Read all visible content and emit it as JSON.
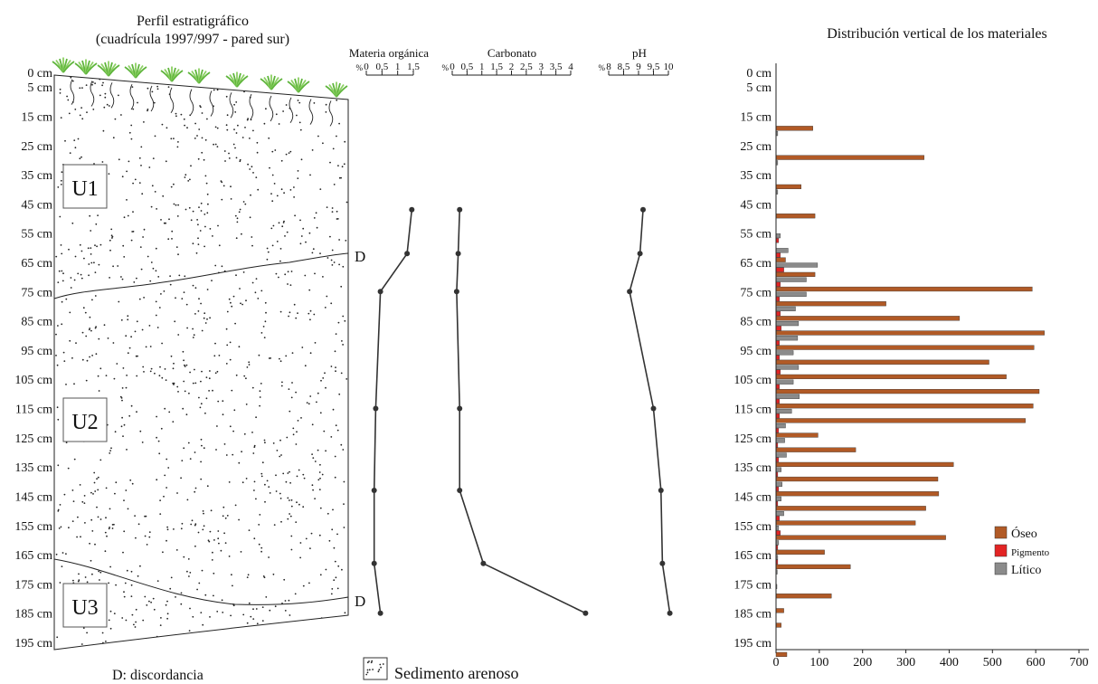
{
  "profile": {
    "title_line1": "Perfil estratigráfico",
    "title_line2": "(cuadrícula 1997/997 - pared sur)",
    "depth_labels": [
      "0 cm",
      "5 cm",
      "15 cm",
      "25 cm",
      "35 cm",
      "45 cm",
      "55 cm",
      "65 cm",
      "75 cm",
      "85 cm",
      "95 cm",
      "105 cm",
      "115 cm",
      "125 cm",
      "135 cm",
      "145 cm",
      "155 cm",
      "165 cm",
      "175 cm",
      "185 cm",
      "195 cm"
    ],
    "units": [
      "U1",
      "U2",
      "U3"
    ],
    "discordance_mark": "D",
    "legend_discordance": "D: discordancia",
    "legend_sediment": "Sedimento arenoso"
  },
  "chart_data": [
    {
      "type": "line",
      "title": "Materia orgánica",
      "unit_label": "%",
      "tick_labels": [
        "0",
        "0,5",
        "1",
        "1,5"
      ],
      "xlim": [
        0,
        1.5
      ],
      "depths": [
        47,
        62,
        75,
        115,
        143,
        168,
        185
      ],
      "values": [
        1.45,
        1.3,
        0.45,
        0.3,
        0.25,
        0.25,
        0.45
      ]
    },
    {
      "type": "line",
      "title": "Carbonato",
      "unit_label": "%",
      "tick_labels": [
        "0",
        "0,5",
        "1",
        "1,5",
        "2",
        "2,5",
        "3",
        "3,5",
        "4"
      ],
      "xlim": [
        0,
        4
      ],
      "depths": [
        47,
        62,
        75,
        115,
        143,
        168,
        185
      ],
      "values": [
        0.25,
        0.2,
        0.15,
        0.25,
        0.25,
        1.05,
        4.5
      ]
    },
    {
      "type": "line",
      "title": "pH",
      "unit_label": "%",
      "tick_labels": [
        "8",
        "8,5",
        "9",
        "9,5",
        "10"
      ],
      "xlim": [
        8,
        10
      ],
      "depths": [
        47,
        62,
        75,
        115,
        143,
        168,
        185
      ],
      "values": [
        9.15,
        9.05,
        8.7,
        9.5,
        9.75,
        9.8,
        10.05
      ]
    },
    {
      "type": "bar",
      "orientation": "horizontal",
      "title": "Distribución vertical de los materiales",
      "y_tick_labels": [
        "0 cm",
        "5 cm",
        "15 cm",
        "25 cm",
        "35 cm",
        "45 cm",
        "55 cm",
        "65 cm",
        "75 cm",
        "85 cm",
        "95 cm",
        "105 cm",
        "115 cm",
        "125 cm",
        "135 cm",
        "145 cm",
        "155 cm",
        "165 cm",
        "175 cm",
        "185 cm",
        "195 cm"
      ],
      "x_tick_labels": [
        "0",
        "100",
        "200",
        "300",
        "400",
        "500",
        "600",
        "700"
      ],
      "xlim": [
        0,
        700
      ],
      "legend_position": "right",
      "categories": [
        "15-20",
        "20-25",
        "25-30",
        "30-35",
        "35-40",
        "40-45",
        "45-50",
        "50-55",
        "55-60",
        "60-65",
        "65-70",
        "70-75",
        "75-80",
        "80-85",
        "85-90",
        "90-95",
        "95-100",
        "100-105",
        "105-110",
        "110-115",
        "115-120",
        "120-125",
        "125-130",
        "130-135",
        "135-140",
        "140-145",
        "145-150",
        "150-155",
        "155-160",
        "160-165",
        "165-170",
        "170-175",
        "175-180",
        "180-185",
        "185-190",
        "190-195",
        "195-200"
      ],
      "series": [
        {
          "name": "Óseo",
          "color": "#b15a26",
          "values": [
            85,
            0,
            342,
            0,
            58,
            0,
            90,
            0,
            0,
            22,
            90,
            592,
            254,
            424,
            620,
            596,
            492,
            532,
            608,
            594,
            576,
            97,
            184,
            410,
            374,
            376,
            346,
            322,
            392,
            112,
            172,
            0,
            128,
            18,
            12,
            0,
            25
          ]
        },
        {
          "name": "Pigmento",
          "color": "#e32424",
          "values": [
            0,
            0,
            0,
            0,
            0,
            0,
            0,
            0,
            6,
            10,
            18,
            10,
            8,
            10,
            12,
            8,
            8,
            10,
            8,
            8,
            8,
            6,
            4,
            6,
            4,
            6,
            4,
            8,
            10,
            4,
            4,
            0,
            0,
            0,
            0,
            0,
            0
          ]
        },
        {
          "name": "Lítico",
          "color": "#8b8b8b",
          "values": [
            0,
            4,
            0,
            4,
            0,
            4,
            0,
            0,
            10,
            28,
            96,
            70,
            70,
            45,
            52,
            50,
            40,
            52,
            40,
            54,
            36,
            22,
            20,
            24,
            12,
            14,
            12,
            18,
            6,
            6,
            4,
            3,
            2,
            0,
            0,
            0,
            0
          ]
        }
      ]
    }
  ]
}
